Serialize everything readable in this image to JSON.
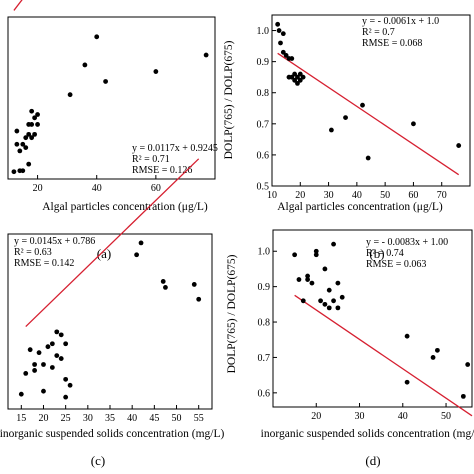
{
  "chart_data": [
    {
      "type": "scatter",
      "panel": "(a)",
      "xlabel": "Algal particles concentration (μg/L)",
      "ylabel": "",
      "xlim": [
        10,
        80
      ],
      "ylim": [
        0.555,
        1.045
      ],
      "xticks": [
        "20",
        "40",
        "60"
      ],
      "yticks": [],
      "annotation": [
        "y = 0.0117x + 0.9245",
        "R² = 0.71",
        "RMSE = 0.126"
      ],
      "fit": {
        "slope": 0.0117,
        "intercept": 0.9245,
        "x_range": [
          12,
          78
        ]
      },
      "x": [
        12,
        13,
        13,
        14,
        14,
        15,
        15,
        16,
        16,
        17,
        17,
        17,
        18,
        18,
        18,
        19,
        19,
        20,
        20,
        31,
        36,
        40,
        43,
        60,
        77
      ],
      "y": [
        0.577,
        0.66,
        0.7,
        0.58,
        0.64,
        0.58,
        0.66,
        0.65,
        0.68,
        0.6,
        0.69,
        0.72,
        0.68,
        0.72,
        0.76,
        0.69,
        0.74,
        0.75,
        0.72,
        0.81,
        0.9,
        0.985,
        0.85,
        0.88,
        0.93
      ]
    },
    {
      "type": "scatter",
      "panel": "(b)",
      "xlabel": "Algal particles concentration (μg/L)",
      "ylabel": "DOLP(765) / DOLP(675)",
      "xlim": [
        10,
        80
      ],
      "ylim": [
        0.5,
        1.05
      ],
      "xticks": [
        "10",
        "20",
        "30",
        "40",
        "50",
        "60",
        "70"
      ],
      "yticks": [
        "0.5",
        "0.6",
        "0.7",
        "0.8",
        "0.9",
        "1.0"
      ],
      "annotation": [
        "y = - 0.0061x + 1.0",
        "R² = 0.7",
        "RMSE = 0.068"
      ],
      "fit": {
        "slope": -0.0061,
        "intercept": 1.0,
        "x_range": [
          12,
          76
        ]
      },
      "x": [
        12,
        12.5,
        13,
        14,
        14,
        15,
        16,
        16,
        17,
        17,
        18,
        18,
        19,
        19,
        20,
        20,
        21,
        31,
        36,
        42,
        44,
        60,
        76
      ],
      "y": [
        1.02,
        1.0,
        0.96,
        0.99,
        0.93,
        0.92,
        0.91,
        0.85,
        0.91,
        0.85,
        0.84,
        0.86,
        0.83,
        0.85,
        0.84,
        0.86,
        0.85,
        0.68,
        0.72,
        0.76,
        0.59,
        0.7,
        0.63
      ]
    },
    {
      "type": "scatter",
      "panel": "(c)",
      "xlabel": "inorganic suspended solids concentration (mg/L)",
      "ylabel": "",
      "xlim": [
        12,
        58
      ],
      "ylim": [
        0.74,
        1.33
      ],
      "xticks": [
        "15",
        "20",
        "25",
        "30",
        "35",
        "40",
        "45",
        "50",
        "55"
      ],
      "yticks": [],
      "annotation": [
        "y = 0.0145x + 0.786",
        "R² = 0.63",
        "RMSE = 0.142"
      ],
      "fit": {
        "slope": 0.0145,
        "intercept": 0.786,
        "x_range": [
          16,
          55
        ]
      },
      "x": [
        15,
        16,
        17,
        18,
        18,
        19,
        20,
        20,
        21,
        22,
        22,
        23,
        23,
        24,
        24,
        25,
        25,
        25,
        26,
        41,
        42,
        47,
        47.5,
        54,
        55
      ],
      "y": [
        0.79,
        0.86,
        0.94,
        0.87,
        0.89,
        0.93,
        0.8,
        0.89,
        0.95,
        0.96,
        0.88,
        1.0,
        0.92,
        0.99,
        0.91,
        0.96,
        0.84,
        0.78,
        0.82,
        1.26,
        1.3,
        1.17,
        1.15,
        1.16,
        1.11
      ]
    },
    {
      "type": "scatter",
      "panel": "(d)",
      "xlabel": "inorganic suspended solids concentration (mg/L)",
      "ylabel": "DOLP(765) / DOLP(675)",
      "xlim": [
        10,
        56
      ],
      "ylim": [
        0.56,
        1.06
      ],
      "xticks": [
        "20",
        "30",
        "40",
        "50"
      ],
      "yticks": [
        "0.6",
        "0.7",
        "0.8",
        "0.9",
        "1.0"
      ],
      "annotation": [
        "y = - 0.0083x + 1.00",
        "R² = 0.74",
        "RMSE = 0.063"
      ],
      "fit": {
        "slope": -0.0083,
        "intercept": 1.0,
        "x_range": [
          15,
          56
        ]
      },
      "x": [
        15,
        16,
        17,
        18,
        18,
        19,
        20,
        20,
        21,
        22,
        22,
        23,
        23,
        24,
        24,
        25,
        25,
        26,
        41,
        41,
        47,
        48,
        54,
        55
      ],
      "y": [
        0.99,
        0.92,
        0.86,
        0.92,
        0.93,
        0.91,
        1.0,
        0.99,
        0.86,
        0.95,
        0.85,
        0.89,
        0.84,
        1.02,
        0.86,
        0.91,
        0.84,
        0.87,
        0.76,
        0.63,
        0.7,
        0.72,
        0.59,
        0.68
      ]
    }
  ]
}
